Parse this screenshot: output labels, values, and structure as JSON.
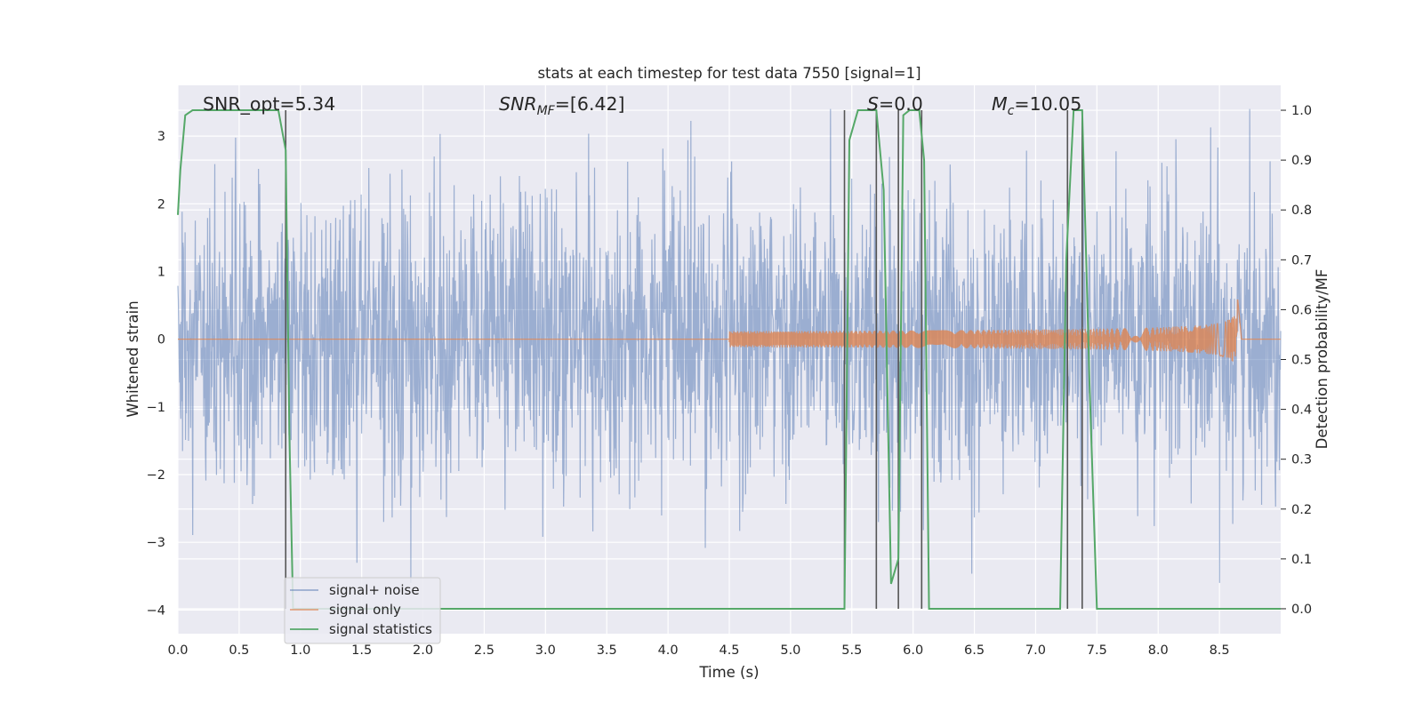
{
  "chart_data": {
    "type": "line",
    "title": "stats at each timestep for test data 7550 [signal=1]",
    "xlabel": "Time (s)",
    "ylabel_left": "Whitened strain",
    "ylabel_right": "Detection probability/MF",
    "xlim": [
      0.0,
      9.0
    ],
    "ylim_left": [
      -4.35,
      3.75
    ],
    "ylim_right": [
      -0.05,
      1.05
    ],
    "xticks": [
      "0.0",
      "0.5",
      "1.0",
      "1.5",
      "2.0",
      "2.5",
      "3.0",
      "3.5",
      "4.0",
      "4.5",
      "5.0",
      "5.5",
      "6.0",
      "6.5",
      "7.0",
      "7.5",
      "8.0",
      "8.5"
    ],
    "yticks_left": [
      "−4",
      "−3",
      "−2",
      "−1",
      "0",
      "1",
      "2",
      "3"
    ],
    "yticks_right": [
      "0.0",
      "0.1",
      "0.2",
      "0.3",
      "0.4",
      "0.5",
      "0.6",
      "0.7",
      "0.8",
      "0.9",
      "1.0"
    ],
    "grid": true,
    "legend_position": "lower-left",
    "annotations": [
      {
        "text": "SNR_opt=5.34",
        "x": 0.2
      },
      {
        "text": "SNR",
        "sub": "MF",
        "after": "=[6.42]",
        "x": 2.6,
        "italic": true
      },
      {
        "text": "S",
        "after": "=0.0",
        "x": 5.6,
        "italic": true
      },
      {
        "text": "M",
        "sub": "c",
        "after": "=10.05",
        "x": 6.62,
        "italic": true
      }
    ],
    "vlines": [
      0.88,
      5.44,
      5.7,
      5.88,
      6.07,
      7.26,
      7.38
    ],
    "series": [
      {
        "name": "signal+ noise",
        "color": "#4c72b0",
        "axis": "left",
        "description": "whitened noisy strain, roughly -3.6 to 3.4, sampled over 0-9 s",
        "amplitude_std": 1.05,
        "range": [
          -3.6,
          3.4
        ]
      },
      {
        "name": "signal only",
        "color": "#dd8452",
        "axis": "left",
        "chirp": {
          "t_start": 4.5,
          "t_merge": 8.65,
          "peak_amp": 0.62
        }
      },
      {
        "name": "signal statistics",
        "color": "#55a868",
        "axis": "right",
        "x": [
          0.0,
          0.02,
          0.06,
          0.12,
          0.3,
          0.5,
          0.7,
          0.82,
          0.88,
          0.91,
          0.94,
          1.0,
          2.0,
          3.0,
          4.0,
          5.0,
          5.44,
          5.48,
          5.55,
          5.62,
          5.7,
          5.76,
          5.82,
          5.88,
          5.92,
          5.97,
          6.05,
          6.09,
          6.13,
          6.19,
          6.25,
          6.5,
          7.0,
          7.2,
          7.25,
          7.31,
          7.38,
          7.44,
          7.5,
          8.0,
          9.0
        ],
        "y": [
          0.79,
          0.88,
          0.99,
          1.0,
          1.0,
          1.0,
          1.0,
          1.0,
          0.92,
          0.35,
          0.0,
          0.0,
          0.0,
          0.0,
          0.0,
          0.0,
          0.0,
          0.94,
          1.0,
          1.0,
          1.0,
          0.84,
          0.05,
          0.1,
          0.99,
          1.0,
          1.0,
          0.9,
          0.0,
          0.0,
          0.0,
          0.0,
          0.0,
          0.0,
          0.7,
          1.0,
          1.0,
          0.45,
          0.0,
          0.0,
          0.0
        ]
      }
    ]
  }
}
